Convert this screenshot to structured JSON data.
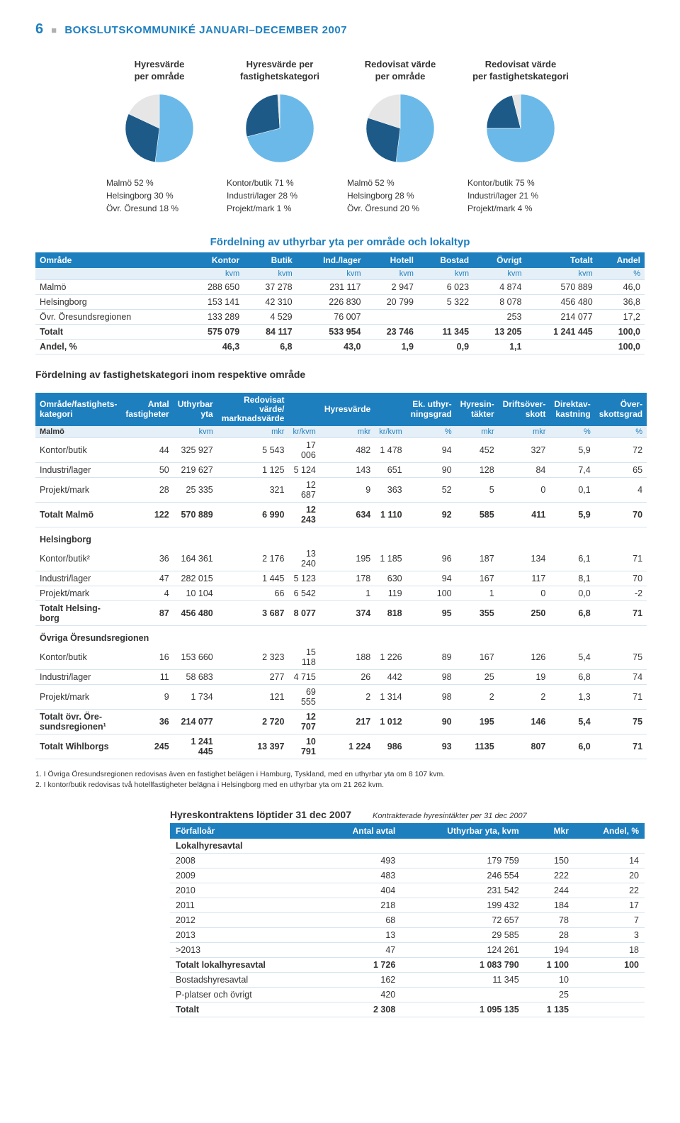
{
  "header": {
    "page_num": "6",
    "title": "BOKSLUTSKOMMUNIKÉ JANUARI–DECEMBER 2007"
  },
  "pies": [
    {
      "title": "Hyresvärde\nper område",
      "slices": [
        {
          "v": 52,
          "c": "#6bb9e8"
        },
        {
          "v": 30,
          "c": "#1e5a88"
        },
        {
          "v": 18,
          "c": "#e6e6e6"
        }
      ],
      "legend": [
        "Malmö 52 %",
        "Helsingborg 30 %",
        "Övr. Öresund 18 %"
      ]
    },
    {
      "title": "Hyresvärde per\nfastighetskategori",
      "slices": [
        {
          "v": 71,
          "c": "#6bb9e8"
        },
        {
          "v": 28,
          "c": "#1e5a88"
        },
        {
          "v": 1,
          "c": "#e6e6e6"
        }
      ],
      "legend": [
        "Kontor/butik 71 %",
        "Industri/lager 28 %",
        "Projekt/mark 1 %"
      ]
    },
    {
      "title": "Redovisat värde\nper område",
      "slices": [
        {
          "v": 52,
          "c": "#6bb9e8"
        },
        {
          "v": 28,
          "c": "#1e5a88"
        },
        {
          "v": 20,
          "c": "#e6e6e6"
        }
      ],
      "legend": [
        "Malmö 52 %",
        "Helsingborg 28 %",
        "Övr. Öresund 20 %"
      ]
    },
    {
      "title": "Redovisat värde\nper fastighetskategori",
      "slices": [
        {
          "v": 75,
          "c": "#6bb9e8"
        },
        {
          "v": 21,
          "c": "#1e5a88"
        },
        {
          "v": 4,
          "c": "#e6e6e6"
        }
      ],
      "legend": [
        "Kontor/butik 75 %",
        "Industri/lager 21 %",
        "Projekt/mark 4 %"
      ]
    }
  ],
  "table1": {
    "title": "Fördelning av uthyrbar yta per område och lokaltyp",
    "cols": [
      "Område",
      "Kontor",
      "Butik",
      "Ind./lager",
      "Hotell",
      "Bostad",
      "Övrigt",
      "Totalt",
      "Andel"
    ],
    "units": [
      "",
      "kvm",
      "kvm",
      "kvm",
      "kvm",
      "kvm",
      "kvm",
      "kvm",
      "%"
    ],
    "rows": [
      [
        "Malmö",
        "288 650",
        "37 278",
        "231 117",
        "2 947",
        "6 023",
        "4 874",
        "570 889",
        "46,0"
      ],
      [
        "Helsingborg",
        "153 141",
        "42 310",
        "226 830",
        "20 799",
        "5 322",
        "8 078",
        "456 480",
        "36,8"
      ],
      [
        "Övr. Öresundsregionen",
        "133 289",
        "4 529",
        "76 007",
        "",
        "",
        "253",
        "214 077",
        "17,2"
      ],
      [
        "Totalt",
        "575 079",
        "84 117",
        "533 954",
        "23 746",
        "11 345",
        "13 205",
        "1 241 445",
        "100,0"
      ],
      [
        "Andel, %",
        "46,3",
        "6,8",
        "43,0",
        "1,9",
        "0,9",
        "1,1",
        "",
        "100,0"
      ]
    ]
  },
  "table2": {
    "title": "Fördelning av fastighetskategori inom respektive område",
    "cols": [
      "Område/fastighets-\nkategori",
      "Antal\nfastigheter",
      "Uthyrbar yta",
      "Redovisat värde/\nmarknadsvärde",
      "",
      "Hyresvärde",
      "",
      "Ek. uthyr-\nningsgrad",
      "Hyresin-\ntäkter",
      "Driftsöver-\nskott",
      "Direktav-\nkastning",
      "Över-\nskottsgrad"
    ],
    "units": [
      "Malmö",
      "",
      "kvm",
      "mkr",
      "kr/kvm",
      "mkr",
      "kr/kvm",
      "%",
      "mkr",
      "mkr",
      "%",
      "%"
    ],
    "sections": [
      {
        "name": "",
        "rows": [
          [
            "Kontor/butik",
            "44",
            "325 927",
            "5 543",
            "17 006",
            "482",
            "1 478",
            "94",
            "452",
            "327",
            "5,9",
            "72"
          ],
          [
            "Industri/lager",
            "50",
            "219 627",
            "1 125",
            "5 124",
            "143",
            "651",
            "90",
            "128",
            "84",
            "7,4",
            "65"
          ],
          [
            "Projekt/mark",
            "28",
            "25 335",
            "321",
            "12 687",
            "9",
            "363",
            "52",
            "5",
            "0",
            "0,1",
            "4"
          ],
          [
            "Totalt Malmö",
            "122",
            "570 889",
            "6 990",
            "12 243",
            "634",
            "1 110",
            "92",
            "585",
            "411",
            "5,9",
            "70"
          ]
        ]
      },
      {
        "name": "Helsingborg",
        "rows": [
          [
            "Kontor/butik²",
            "36",
            "164 361",
            "2 176",
            "13 240",
            "195",
            "1 185",
            "96",
            "187",
            "134",
            "6,1",
            "71"
          ],
          [
            "Industri/lager",
            "47",
            "282 015",
            "1 445",
            "5 123",
            "178",
            "630",
            "94",
            "167",
            "117",
            "8,1",
            "70"
          ],
          [
            "Projekt/mark",
            "4",
            "10 104",
            "66",
            "6 542",
            "1",
            "119",
            "100",
            "1",
            "0",
            "0,0",
            "-2"
          ],
          [
            "Totalt Helsing-\nborg",
            "87",
            "456 480",
            "3 687",
            "8 077",
            "374",
            "818",
            "95",
            "355",
            "250",
            "6,8",
            "71"
          ]
        ]
      },
      {
        "name": "Övriga Öresundsregionen",
        "rows": [
          [
            "Kontor/butik",
            "16",
            "153 660",
            "2 323",
            "15 118",
            "188",
            "1 226",
            "89",
            "167",
            "126",
            "5,4",
            "75"
          ],
          [
            "Industri/lager",
            "11",
            "58 683",
            "277",
            "4 715",
            "26",
            "442",
            "98",
            "25",
            "19",
            "6,8",
            "74"
          ],
          [
            "Projekt/mark",
            "9",
            "1 734",
            "121",
            "69 555",
            "2",
            "1 314",
            "98",
            "2",
            "2",
            "1,3",
            "71"
          ],
          [
            "Totalt övr. Öre-\nsundsregionen¹",
            "36",
            "214 077",
            "2 720",
            "12 707",
            "217",
            "1 012",
            "90",
            "195",
            "146",
            "5,4",
            "75"
          ]
        ]
      },
      {
        "name": "",
        "rows": [
          [
            "Totalt Wihlborgs",
            "245",
            "1 241 445",
            "13 397",
            "10 791",
            "1 224",
            "986",
            "93",
            "1135",
            "807",
            "6,0",
            "71"
          ]
        ]
      }
    ]
  },
  "footnotes": [
    "1. I Övriga Öresundsregionen redovisas även en fastighet belägen i Hamburg, Tyskland, med en uthyrbar yta om 8 107 kvm.",
    "2. I kontor/butik redovisas två hotellfastigheter belägna i Helsingborg med en uthyrbar yta om 21 262 kvm."
  ],
  "table3": {
    "title": "Hyreskontraktens löptider 31 dec 2007",
    "sub": "Kontrakterade hyresintäkter per 31 dec 2007",
    "cols": [
      "Förfalloår",
      "Antal avtal",
      "Uthyrbar yta, kvm",
      "Mkr",
      "Andel, %"
    ],
    "rows": [
      [
        "Lokalhyresavtal",
        "",
        "",
        "",
        ""
      ],
      [
        "2008",
        "493",
        "179 759",
        "150",
        "14"
      ],
      [
        "2009",
        "483",
        "246 554",
        "222",
        "20"
      ],
      [
        "2010",
        "404",
        "231 542",
        "244",
        "22"
      ],
      [
        "2011",
        "218",
        "199 432",
        "184",
        "17"
      ],
      [
        "2012",
        "68",
        "72 657",
        "78",
        "7"
      ],
      [
        "2013",
        "13",
        "29 585",
        "28",
        "3"
      ],
      [
        ">2013",
        "47",
        "124 261",
        "194",
        "18"
      ],
      [
        "Totalt lokalhyresavtal",
        "1 726",
        "1 083 790",
        "1 100",
        "100"
      ],
      [
        "Bostadshyresavtal",
        "162",
        "11 345",
        "10",
        ""
      ],
      [
        "P-platser och övrigt",
        "420",
        "",
        "25",
        ""
      ],
      [
        "Totalt",
        "2 308",
        "1 095 135",
        "1 135",
        ""
      ]
    ]
  }
}
